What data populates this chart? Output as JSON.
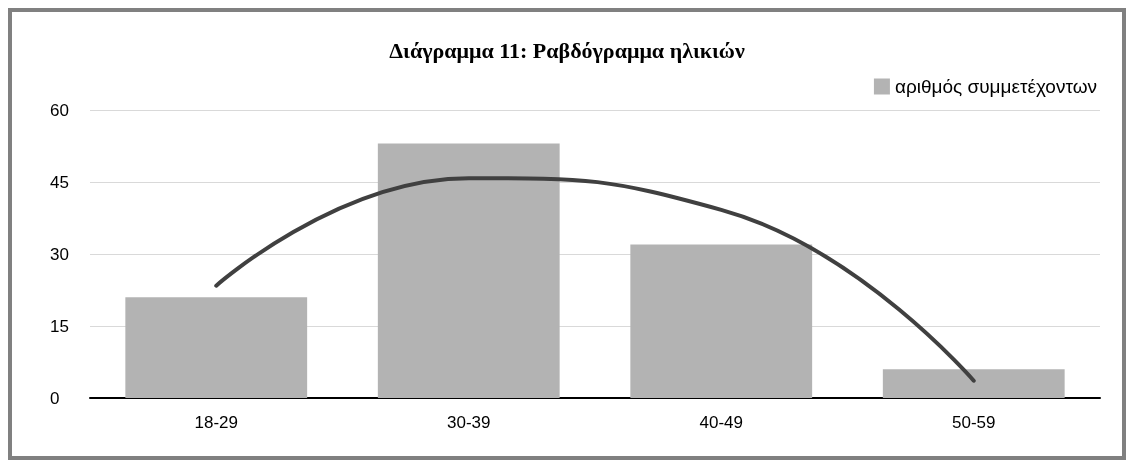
{
  "chart_data": {
    "type": "bar",
    "title": "Διάγραμμα 11: Ραβδόγραμμα ηλικιών",
    "categories": [
      "18-29",
      "30-39",
      "40-49",
      "50-59"
    ],
    "series": [
      {
        "name": "αριθμός συμμετέχοντων",
        "color": "#b3b3b3",
        "values": [
          21,
          53,
          32,
          6
        ]
      },
      {
        "type": "line",
        "color": "#404040",
        "values": [
          23.4,
          45.8,
          39.2,
          3.6
        ]
      }
    ],
    "ylim": [
      0,
      60
    ],
    "yticks": [
      0,
      15,
      30,
      45,
      60
    ],
    "grid": "y",
    "legend": "top right",
    "marker": "none"
  }
}
